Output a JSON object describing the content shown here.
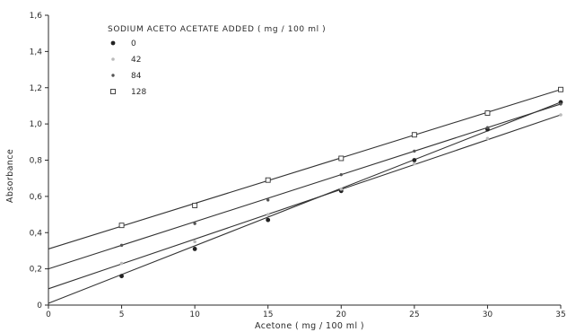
{
  "chart_data": {
    "type": "scatter",
    "xlabel": "Acetone ( mg / 100 ml )",
    "ylabel": "Absorbance",
    "xlim": [
      0,
      35
    ],
    "ylim": [
      0,
      1.6
    ],
    "x_ticks": [
      0,
      5,
      10,
      15,
      20,
      25,
      30,
      35
    ],
    "y_ticks": [
      0,
      0.2,
      0.4,
      0.6,
      0.8,
      1.0,
      1.2,
      1.4,
      1.6
    ],
    "x_tick_labels": [
      "0",
      "5",
      "10",
      "15",
      "20",
      "25",
      "30",
      "35"
    ],
    "y_tick_labels": [
      "0",
      "0,2",
      "0,4",
      "0,6",
      "0,8",
      "1,0",
      "1,2",
      "1,4",
      "1,6"
    ],
    "grid": false,
    "legend": {
      "title": "SODIUM ACETO ACETATE ADDED ( mg / 100 ml )",
      "placement": "top-left"
    },
    "colors": {
      "axis": "#2a2a2a",
      "line": "#333333",
      "background": "#ffffff"
    },
    "series": [
      {
        "name": "0",
        "marker": "dot",
        "points": [
          [
            5,
            0.16
          ],
          [
            10,
            0.31
          ],
          [
            15,
            0.47
          ],
          [
            20,
            0.63
          ],
          [
            25,
            0.8
          ],
          [
            30,
            0.97
          ],
          [
            35,
            1.12
          ]
        ],
        "fit": [
          [
            0,
            0.01
          ],
          [
            35,
            1.12
          ]
        ]
      },
      {
        "name": "42",
        "marker": "faint",
        "points": [
          [
            5,
            0.23
          ],
          [
            10,
            0.35
          ],
          [
            15,
            0.5
          ],
          [
            20,
            0.64
          ],
          [
            25,
            0.78
          ],
          [
            30,
            0.92
          ],
          [
            35,
            1.05
          ]
        ],
        "fit": [
          [
            0,
            0.09
          ],
          [
            35,
            1.05
          ]
        ]
      },
      {
        "name": "84",
        "marker": "dot-small",
        "points": [
          [
            5,
            0.33
          ],
          [
            10,
            0.45
          ],
          [
            15,
            0.58
          ],
          [
            20,
            0.72
          ],
          [
            25,
            0.85
          ],
          [
            30,
            0.98
          ],
          [
            35,
            1.11
          ]
        ],
        "fit": [
          [
            0,
            0.2
          ],
          [
            35,
            1.11
          ]
        ]
      },
      {
        "name": "128",
        "marker": "square-open",
        "points": [
          [
            5,
            0.44
          ],
          [
            10,
            0.55
          ],
          [
            15,
            0.69
          ],
          [
            20,
            0.81
          ],
          [
            25,
            0.94
          ],
          [
            30,
            1.06
          ],
          [
            35,
            1.19
          ]
        ],
        "fit": [
          [
            0,
            0.31
          ],
          [
            35,
            1.19
          ]
        ]
      }
    ]
  }
}
